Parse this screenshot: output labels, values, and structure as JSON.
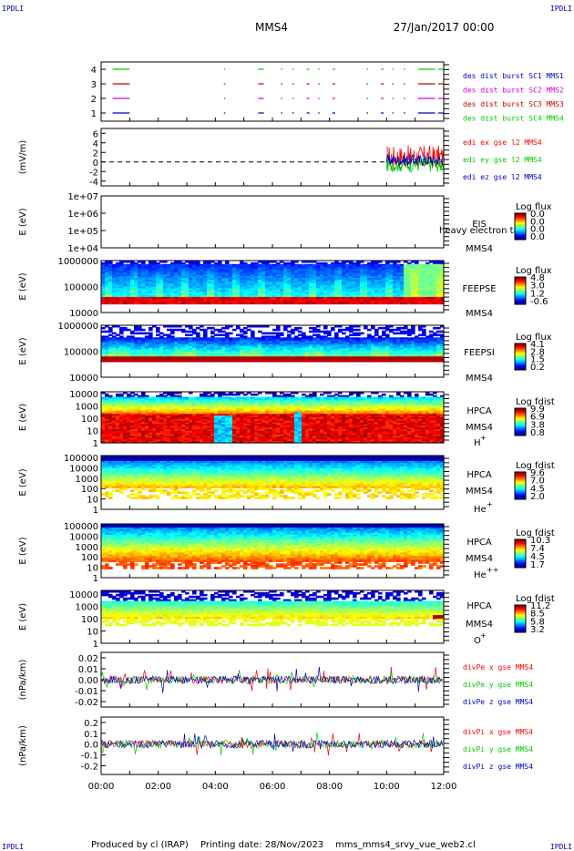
{
  "header": {
    "corner_tl": "IPDLI",
    "corner_tr": "IPDLI",
    "corner_bl": "IPDLI",
    "corner_br": "IPDLI",
    "spacecraft": "MMS4",
    "date": "27/Jan/2017 00:00"
  },
  "footer": {
    "produced_by": "Produced by cl (IRAP)",
    "printing_date": "Printing date: 28/Nov/2023",
    "script": "mms_mms4_srvy_vue_web2.cl"
  },
  "colors": {
    "black": "#000000",
    "red": "#ff0000",
    "green": "#00cc00",
    "blue": "#0000cc",
    "magenta": "#dd00dd",
    "darkred": "#cc0000"
  },
  "chart_data": [
    {
      "type": "line",
      "name": "burst-availability",
      "yticks": [
        "4",
        "3",
        "2",
        "1"
      ],
      "legend": [
        {
          "label": "des dist burst SC1 MMS1",
          "color": "#0000cc"
        },
        {
          "label": "des dist burst SC2 MMS2",
          "color": "#dd00dd"
        },
        {
          "label": "des dist burst SC3 MMS3",
          "color": "#cc0000"
        },
        {
          "label": "des dist burst SC4 MMS4",
          "color": "#00cc00"
        }
      ]
    },
    {
      "type": "line",
      "name": "edi-e-field",
      "ylabel": "(mV/m)",
      "yticks": [
        "6",
        "4",
        "2",
        "0",
        "-2",
        "-4"
      ],
      "ylim": [
        -5,
        7
      ],
      "legend": [
        {
          "label": "edi ex gse l2 MMS4",
          "color": "#ff0000"
        },
        {
          "label": "edi ey gse l2 MMS4",
          "color": "#00cc00"
        },
        {
          "label": "edi ez gse l2 MMS4",
          "color": "#0000cc"
        }
      ]
    },
    {
      "type": "heatmap",
      "name": "eis",
      "ylabel": "E (eV)",
      "yticks": [
        "1e+07",
        "1e+06",
        "1e+05",
        "1e+04"
      ],
      "instrument": "EIS",
      "species": "heavy electron to",
      "sc": "MMS4",
      "cbar_title": "Log flux",
      "cbar_ticks": [
        "0.0",
        "0.0",
        "0.0",
        "0.0"
      ]
    },
    {
      "type": "heatmap",
      "name": "feepse",
      "ylabel": "E (eV)",
      "yticks": [
        "1000000",
        "100000",
        "10000"
      ],
      "instrument": "FEEPSE",
      "sc": "MMS4",
      "cbar_title": "Log flux",
      "cbar_ticks": [
        "4.8",
        "3.0",
        "1.2",
        "-0.6"
      ]
    },
    {
      "type": "heatmap",
      "name": "feepsi",
      "ylabel": "E (eV)",
      "yticks": [
        "1000000",
        "100000",
        "10000"
      ],
      "instrument": "FEEPSI",
      "sc": "MMS4",
      "cbar_title": "Log flux",
      "cbar_ticks": [
        "4.1",
        "2.8",
        "1.5",
        "0.2"
      ]
    },
    {
      "type": "heatmap",
      "name": "hpca-h",
      "ylabel": "E (eV)",
      "yticks": [
        "10000",
        "1000",
        "100",
        "10",
        "1"
      ],
      "instrument": "HPCA",
      "sc": "MMS4",
      "ion": "H",
      "charge": "+",
      "cbar_title": "Log fdist",
      "cbar_ticks": [
        "9.9",
        "6.9",
        "3.8",
        "0.8"
      ]
    },
    {
      "type": "heatmap",
      "name": "hpca-he1",
      "ylabel": "E (eV)",
      "yticks": [
        "100000",
        "10000",
        "1000",
        "100",
        "10",
        "1"
      ],
      "instrument": "HPCA",
      "sc": "MMS4",
      "ion": "He",
      "charge": "+",
      "cbar_title": "Log fdist",
      "cbar_ticks": [
        "9.6",
        "7.0",
        "4.5",
        "2.0"
      ]
    },
    {
      "type": "heatmap",
      "name": "hpca-he2",
      "ylabel": "E (eV)",
      "yticks": [
        "100000",
        "10000",
        "1000",
        "100",
        "10",
        "1"
      ],
      "instrument": "HPCA",
      "sc": "MMS4",
      "ion": "He",
      "charge": "++",
      "cbar_title": "Log fdist",
      "cbar_ticks": [
        "10.3",
        "7.4",
        "4.5",
        "1.7"
      ]
    },
    {
      "type": "heatmap",
      "name": "hpca-o",
      "ylabel": "E (eV)",
      "yticks": [
        "10000",
        "1000",
        "100",
        "10",
        "1"
      ],
      "instrument": "HPCA",
      "sc": "MMS4",
      "ion": "O",
      "charge": "+",
      "cbar_title": "Log fdist",
      "cbar_ticks": [
        "11.2",
        "8.5",
        "5.8",
        "3.2"
      ]
    },
    {
      "type": "line",
      "name": "divpe",
      "ylabel": "(nPa/km)",
      "yticks": [
        "0.02",
        "0.01",
        "0.00",
        "-0.01",
        "-0.02"
      ],
      "ylim": [
        -0.025,
        0.025
      ],
      "legend": [
        {
          "label": "divPe x gse MMS4",
          "color": "#ff0000"
        },
        {
          "label": "divPe y gse MMS4",
          "color": "#00cc00"
        },
        {
          "label": "divPe z gse MMS4",
          "color": "#0000cc"
        }
      ]
    },
    {
      "type": "line",
      "name": "divpi",
      "ylabel": "(nPa/km)",
      "yticks": [
        "0.2",
        "0.1",
        "0.0",
        "-0.1",
        "-0.2"
      ],
      "ylim": [
        -0.28,
        0.25
      ],
      "legend": [
        {
          "label": "divPi x gse MMS4",
          "color": "#ff0000"
        },
        {
          "label": "divPi y gse MMS4",
          "color": "#00cc00"
        },
        {
          "label": "divPi z gse MMS4",
          "color": "#0000cc"
        }
      ]
    }
  ],
  "time_axis": {
    "ticks": [
      "00:00",
      "02:00",
      "04:00",
      "06:00",
      "08:00",
      "10:00",
      "12:00"
    ],
    "range_hours": [
      0,
      12
    ]
  }
}
